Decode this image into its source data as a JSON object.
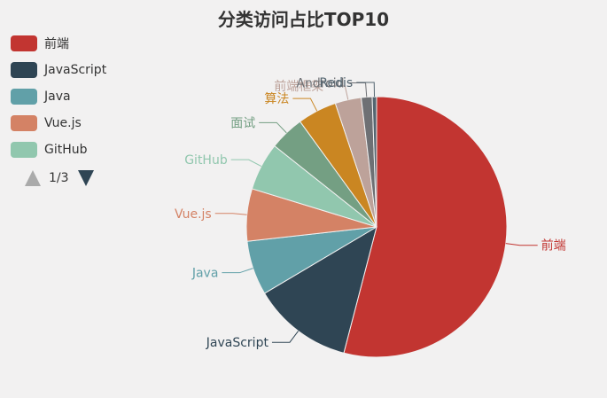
{
  "chart_data": {
    "type": "pie",
    "title": "分类访问占比TOP10",
    "categories": [
      "前端",
      "JavaScript",
      "Java",
      "Vue.js",
      "GitHub",
      "面试",
      "算法",
      "前端框架",
      "Android",
      "Redis"
    ],
    "values": [
      100,
      23,
      12.5,
      12,
      11,
      8,
      9,
      6,
      2.5,
      1
    ],
    "colors": [
      "#c23531",
      "#2f4554",
      "#61a0a8",
      "#d48265",
      "#91c7ae",
      "#749f83",
      "#ca8622",
      "#bda29a",
      "#6e7074",
      "#546570"
    ],
    "legend": {
      "position": "top-left",
      "visible_items": [
        "前端",
        "JavaScript",
        "Java",
        "Vue.js",
        "GitHub"
      ],
      "page": "1/3"
    }
  }
}
